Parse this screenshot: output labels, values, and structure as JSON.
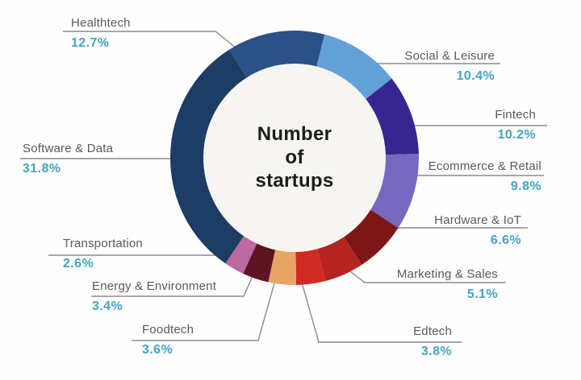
{
  "chart_data": {
    "type": "pie",
    "variant": "donut",
    "title": "Number of startups",
    "center_label_lines": [
      "Number",
      "of",
      "startups"
    ],
    "legend_position": "callouts-around-donut",
    "start_angle_deg": -31.7,
    "units": "%",
    "slices": [
      {
        "label": "Healthtech",
        "value": 12.7,
        "pct_label": "12.7%",
        "color": "#2b5186"
      },
      {
        "label": "Social & Leisure",
        "value": 10.4,
        "pct_label": "10.4%",
        "color": "#64a0d8"
      },
      {
        "label": "Fintech",
        "value": 10.2,
        "pct_label": "10.2%",
        "color": "#382690"
      },
      {
        "label": "Ecommerce & Retail",
        "value": 9.8,
        "pct_label": "9.8%",
        "color": "#7668bf"
      },
      {
        "label": "Hardware & IoT",
        "value": 6.6,
        "pct_label": "6.6%",
        "color": "#7e1618"
      },
      {
        "label": "Marketing & Sales",
        "value": 5.1,
        "pct_label": "5.1%",
        "color": "#b52421"
      },
      {
        "label": "Edtech",
        "value": 3.8,
        "pct_label": "3.8%",
        "color": "#d02a23"
      },
      {
        "label": "Foodtech",
        "value": 3.6,
        "pct_label": "3.6%",
        "color": "#e7a465"
      },
      {
        "label": "Energy & Environment",
        "value": 3.4,
        "pct_label": "3.4%",
        "color": "#5f1422"
      },
      {
        "label": "Transportation",
        "value": 2.6,
        "pct_label": "2.6%",
        "color": "#bd68a1"
      },
      {
        "label": "Software & Data",
        "value": 31.8,
        "pct_label": "31.8%",
        "color": "#1d3d64"
      }
    ],
    "colors": {
      "label_text": "#595959",
      "pct_text": "#44a3c4",
      "leader_line": "#8a8a8a",
      "center_text": "#1c1c1c",
      "hole_fill": "#f6f5f2"
    }
  }
}
